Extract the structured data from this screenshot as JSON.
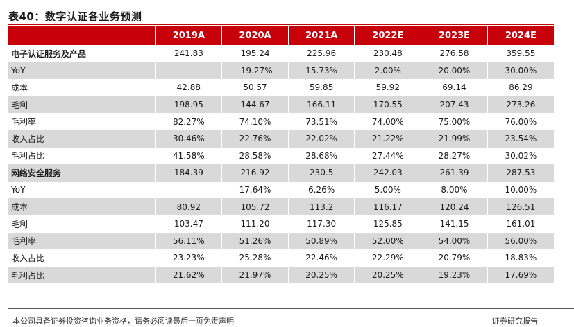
{
  "title": "表40：数字认证各业务预测",
  "table": {
    "columns": [
      "",
      "2019A",
      "2020A",
      "2021A",
      "2022E",
      "2023E",
      "2024E"
    ],
    "rows": [
      {
        "label": "电子认证服务及产品",
        "section": true,
        "values": [
          "241.83",
          "195.24",
          "225.96",
          "230.48",
          "276.58",
          "359.55"
        ]
      },
      {
        "label": "YoY",
        "section": false,
        "values": [
          "",
          "-19.27%",
          "15.73%",
          "2.00%",
          "20.00%",
          "30.00%"
        ]
      },
      {
        "label": "成本",
        "section": false,
        "values": [
          "42.88",
          "50.57",
          "59.85",
          "59.92",
          "69.14",
          "86.29"
        ]
      },
      {
        "label": "毛利",
        "section": false,
        "values": [
          "198.95",
          "144.67",
          "166.11",
          "170.55",
          "207.43",
          "273.26"
        ]
      },
      {
        "label": "毛利率",
        "section": false,
        "values": [
          "82.27%",
          "74.10%",
          "73.51%",
          "74.00%",
          "75.00%",
          "76.00%"
        ]
      },
      {
        "label": "收入占比",
        "section": false,
        "values": [
          "30.46%",
          "22.76%",
          "22.02%",
          "21.22%",
          "21.99%",
          "23.54%"
        ]
      },
      {
        "label": "毛利占比",
        "section": false,
        "values": [
          "41.58%",
          "28.58%",
          "28.68%",
          "27.44%",
          "28.27%",
          "30.02%"
        ]
      },
      {
        "label": "网络安全服务",
        "section": true,
        "values": [
          "184.39",
          "216.92",
          "230.5",
          "242.03",
          "261.39",
          "287.53"
        ]
      },
      {
        "label": "YoY",
        "section": false,
        "values": [
          "",
          "17.64%",
          "6.26%",
          "5.00%",
          "8.00%",
          "10.00%"
        ]
      },
      {
        "label": "成本",
        "section": false,
        "values": [
          "80.92",
          "105.72",
          "113.2",
          "116.17",
          "120.24",
          "126.51"
        ]
      },
      {
        "label": "毛利",
        "section": false,
        "values": [
          "103.47",
          "111.20",
          "117.30",
          "125.85",
          "141.15",
          "161.01"
        ]
      },
      {
        "label": "毛利率",
        "section": false,
        "values": [
          "56.11%",
          "51.26%",
          "50.89%",
          "52.00%",
          "54.00%",
          "56.00%"
        ]
      },
      {
        "label": "收入占比",
        "section": false,
        "values": [
          "23.23%",
          "25.28%",
          "22.46%",
          "22.29%",
          "20.79%",
          "18.83%"
        ]
      },
      {
        "label": "毛利占比",
        "section": false,
        "values": [
          "21.62%",
          "21.97%",
          "20.25%",
          "20.25%",
          "19.23%",
          "17.69%"
        ]
      }
    ]
  },
  "footer": {
    "disclaimer": "本公司具备证券投资咨询业务资格，请务必阅读最后一页免责声明",
    "report_type": "证券研究报告"
  },
  "colors": {
    "header_bg": "#c8000a",
    "title_rule": "#c00000",
    "row_shade": "#d9d9d9"
  }
}
